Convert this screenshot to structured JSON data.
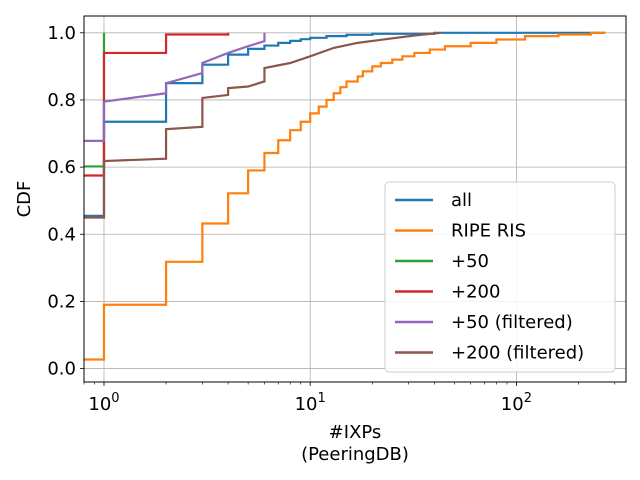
{
  "chart_data": {
    "type": "line",
    "title": "",
    "xlabel": "#IXPs",
    "xlabel_sub": "(PeeringDB)",
    "ylabel": "CDF",
    "xscale": "log",
    "xlim": [
      0.8,
      340
    ],
    "ylim": [
      -0.04,
      1.05
    ],
    "grid": true,
    "legend_position": "lower-right",
    "x_ticks": [
      {
        "value": 1,
        "base": "10",
        "exp": "0"
      },
      {
        "value": 10,
        "base": "10",
        "exp": "1"
      },
      {
        "value": 100,
        "base": "10",
        "exp": "2"
      }
    ],
    "y_ticks": [
      {
        "value": 0.0,
        "label": "0.0"
      },
      {
        "value": 0.2,
        "label": "0.2"
      },
      {
        "value": 0.4,
        "label": "0.4"
      },
      {
        "value": 0.6,
        "label": "0.6"
      },
      {
        "value": 0.8,
        "label": "0.8"
      },
      {
        "value": 1.0,
        "label": "1.0"
      }
    ],
    "series": [
      {
        "name": "all",
        "color": "#1f77b4",
        "points": [
          [
            0.8,
            0.455
          ],
          [
            1,
            0.455
          ],
          [
            1,
            0.735
          ],
          [
            2,
            0.735
          ],
          [
            2,
            0.85
          ],
          [
            3,
            0.85
          ],
          [
            3,
            0.905
          ],
          [
            4,
            0.905
          ],
          [
            4,
            0.935
          ],
          [
            5,
            0.935
          ],
          [
            5,
            0.952
          ],
          [
            6,
            0.952
          ],
          [
            6,
            0.962
          ],
          [
            7,
            0.962
          ],
          [
            7,
            0.97
          ],
          [
            8,
            0.97
          ],
          [
            8,
            0.976
          ],
          [
            9,
            0.976
          ],
          [
            9,
            0.981
          ],
          [
            10,
            0.981
          ],
          [
            10,
            0.985
          ],
          [
            12,
            0.985
          ],
          [
            12,
            0.99
          ],
          [
            15,
            0.99
          ],
          [
            15,
            0.994
          ],
          [
            20,
            0.994
          ],
          [
            20,
            0.997
          ],
          [
            40,
            0.997
          ],
          [
            40,
            1.0
          ],
          [
            270,
            1.0
          ]
        ]
      },
      {
        "name": "RIPE RIS",
        "color": "#ff7f0e",
        "points": [
          [
            0.8,
            0.027
          ],
          [
            1,
            0.027
          ],
          [
            1,
            0.19
          ],
          [
            2,
            0.19
          ],
          [
            2,
            0.318
          ],
          [
            3,
            0.318
          ],
          [
            3,
            0.432
          ],
          [
            4,
            0.432
          ],
          [
            4,
            0.522
          ],
          [
            5,
            0.522
          ],
          [
            5,
            0.59
          ],
          [
            6,
            0.59
          ],
          [
            6,
            0.642
          ],
          [
            7,
            0.642
          ],
          [
            7,
            0.68
          ],
          [
            8,
            0.68
          ],
          [
            8,
            0.71
          ],
          [
            9,
            0.71
          ],
          [
            9,
            0.735
          ],
          [
            10,
            0.735
          ],
          [
            10,
            0.76
          ],
          [
            11,
            0.76
          ],
          [
            11,
            0.78
          ],
          [
            12,
            0.78
          ],
          [
            12,
            0.8
          ],
          [
            13,
            0.8
          ],
          [
            13,
            0.82
          ],
          [
            14,
            0.82
          ],
          [
            14,
            0.838
          ],
          [
            15,
            0.838
          ],
          [
            15,
            0.855
          ],
          [
            17,
            0.855
          ],
          [
            17,
            0.87
          ],
          [
            18,
            0.87
          ],
          [
            18,
            0.885
          ],
          [
            20,
            0.885
          ],
          [
            20,
            0.9
          ],
          [
            22,
            0.9
          ],
          [
            22,
            0.91
          ],
          [
            25,
            0.91
          ],
          [
            25,
            0.92
          ],
          [
            28,
            0.92
          ],
          [
            28,
            0.93
          ],
          [
            32,
            0.93
          ],
          [
            32,
            0.94
          ],
          [
            38,
            0.94
          ],
          [
            38,
            0.95
          ],
          [
            45,
            0.95
          ],
          [
            45,
            0.96
          ],
          [
            60,
            0.96
          ],
          [
            60,
            0.97
          ],
          [
            80,
            0.97
          ],
          [
            80,
            0.98
          ],
          [
            110,
            0.98
          ],
          [
            110,
            0.99
          ],
          [
            160,
            0.99
          ],
          [
            160,
            0.995
          ],
          [
            230,
            0.995
          ],
          [
            230,
            1.0
          ],
          [
            270,
            1.0
          ]
        ]
      },
      {
        "name": "+50",
        "color": "#2ca02c",
        "points": [
          [
            0.8,
            0.602
          ],
          [
            1,
            0.602
          ],
          [
            1,
            1.0
          ]
        ]
      },
      {
        "name": "+200",
        "color": "#d62728",
        "points": [
          [
            0.8,
            0.575
          ],
          [
            1,
            0.575
          ],
          [
            1,
            0.94
          ],
          [
            2,
            0.94
          ],
          [
            2,
            0.995
          ],
          [
            4,
            0.995
          ],
          [
            4,
            1.0
          ]
        ]
      },
      {
        "name": "+50 (filtered)",
        "color": "#9467bd",
        "points": [
          [
            0.8,
            0.678
          ],
          [
            1,
            0.678
          ],
          [
            1,
            0.795
          ],
          [
            2,
            0.82
          ],
          [
            2,
            0.85
          ],
          [
            3,
            0.88
          ],
          [
            3,
            0.91
          ],
          [
            4,
            0.94
          ],
          [
            5,
            0.96
          ],
          [
            6,
            0.975
          ],
          [
            6,
            1.0
          ]
        ]
      },
      {
        "name": "+200 (filtered)",
        "color": "#8c564b",
        "points": [
          [
            0.8,
            0.45
          ],
          [
            1,
            0.45
          ],
          [
            1,
            0.618
          ],
          [
            2,
            0.625
          ],
          [
            2,
            0.713
          ],
          [
            3,
            0.72
          ],
          [
            3,
            0.806
          ],
          [
            4,
            0.815
          ],
          [
            4,
            0.835
          ],
          [
            5,
            0.84
          ],
          [
            6,
            0.855
          ],
          [
            6,
            0.895
          ],
          [
            8,
            0.91
          ],
          [
            10,
            0.93
          ],
          [
            13,
            0.955
          ],
          [
            17,
            0.97
          ],
          [
            24,
            0.982
          ],
          [
            32,
            0.992
          ],
          [
            43,
            1.0
          ]
        ]
      }
    ]
  }
}
